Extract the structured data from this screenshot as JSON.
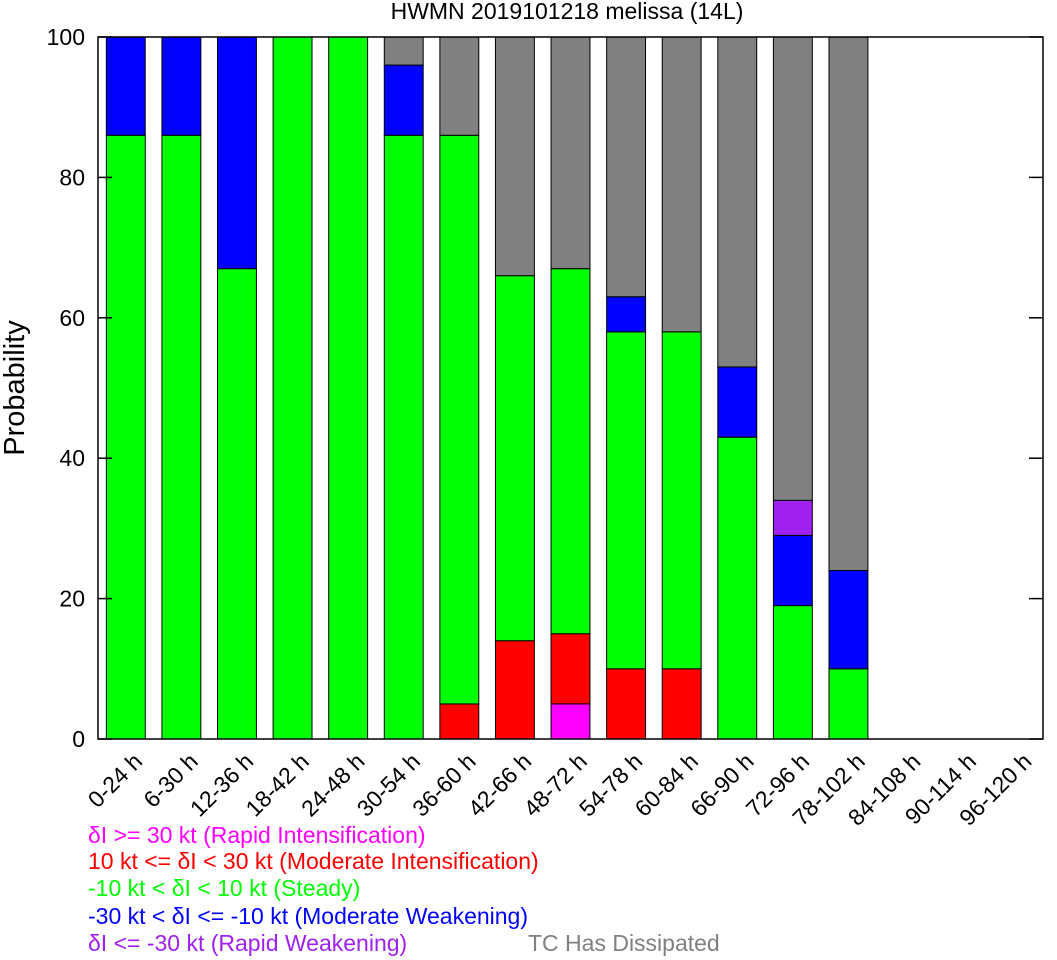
{
  "chart_data": {
    "type": "bar",
    "stacked": true,
    "title": "HWMN 2019101218 melissa (14L)",
    "xlabel": "",
    "ylabel": "Probability",
    "ylim": [
      0,
      100
    ],
    "yticks": [
      0,
      20,
      40,
      60,
      80,
      100
    ],
    "grid": false,
    "categories": [
      "0-24 h",
      "6-30 h",
      "12-36 h",
      "18-42 h",
      "24-48 h",
      "30-54 h",
      "36-60 h",
      "42-66 h",
      "48-72 h",
      "54-78 h",
      "60-84 h",
      "66-90 h",
      "72-96 h",
      "78-102 h",
      "84-108 h",
      "90-114 h",
      "96-120 h"
    ],
    "series": [
      {
        "name": "δI >= 30 kt (Rapid Intensification)",
        "color": "#ff00ff",
        "values": [
          0,
          0,
          0,
          0,
          0,
          0,
          0,
          0,
          5,
          0,
          0,
          0,
          0,
          0,
          0,
          0,
          0
        ]
      },
      {
        "name": "10 kt <= δI < 30 kt (Moderate Intensification)",
        "color": "#ff0000",
        "values": [
          0,
          0,
          0,
          0,
          0,
          0,
          5,
          14,
          10,
          10,
          10,
          0,
          0,
          0,
          0,
          0,
          0
        ]
      },
      {
        "name": "-10 kt < δI < 10 kt (Steady)",
        "color": "#00ff00",
        "values": [
          86,
          86,
          67,
          100,
          100,
          86,
          81,
          52,
          52,
          48,
          48,
          43,
          19,
          10,
          0,
          0,
          0
        ]
      },
      {
        "name": "-30 kt < δI <= -10 kt (Moderate Weakening)",
        "color": "#0000ff",
        "values": [
          14,
          14,
          33,
          0,
          0,
          10,
          0,
          0,
          0,
          5,
          0,
          10,
          10,
          14,
          0,
          0,
          0
        ]
      },
      {
        "name": "δI <= -30 kt (Rapid Weakening)",
        "color": "#a020f0",
        "values": [
          0,
          0,
          0,
          0,
          0,
          0,
          0,
          0,
          0,
          0,
          0,
          0,
          5,
          0,
          0,
          0,
          0
        ]
      },
      {
        "name": "TC Has Dissipated",
        "color": "#808080",
        "values": [
          0,
          0,
          0,
          0,
          0,
          4,
          14,
          34,
          33,
          37,
          42,
          47,
          66,
          76,
          0,
          0,
          0
        ]
      }
    ]
  }
}
